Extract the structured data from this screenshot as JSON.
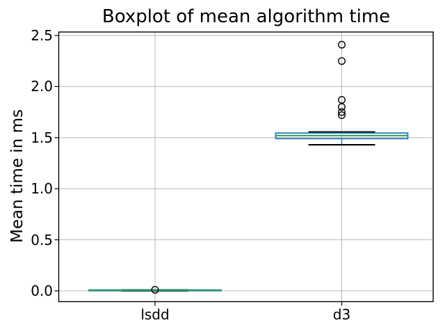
{
  "chart_data": {
    "type": "boxplot",
    "title": "Boxplot of mean algorithm time",
    "ylabel": "Mean time in ms",
    "xlabel": "",
    "categories": [
      "lsdd",
      "d3"
    ],
    "yticks": [
      "0.0",
      "0.5",
      "1.0",
      "1.5",
      "2.0",
      "2.5"
    ],
    "ylim": [
      -0.1,
      2.53
    ],
    "grid": true,
    "legend": false,
    "series": [
      {
        "name": "lsdd",
        "whisker_low": 0.0,
        "q1": 0.001,
        "median": 0.008,
        "q3": 0.009,
        "whisker_high": 0.009,
        "outliers": [
          0.01
        ]
      },
      {
        "name": "d3",
        "whisker_low": 1.43,
        "q1": 1.49,
        "median": 1.52,
        "q3": 1.545,
        "whisker_high": 1.555,
        "outliers": [
          2.41,
          2.25,
          1.87,
          1.8,
          1.75,
          1.72
        ]
      }
    ],
    "colors": {
      "box": "#2478bd",
      "whisker": "#2478bd",
      "median": "#2f9e4f",
      "caps": "#000000",
      "fliers": "#000000",
      "grid": "#b8b8b8",
      "spine": "#000000",
      "text": "#000000",
      "background": "#ffffff"
    }
  }
}
